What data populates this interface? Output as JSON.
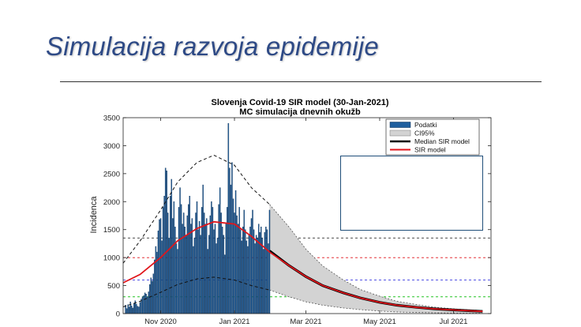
{
  "slide": {
    "title": "Simulacija razvoja epidemije"
  },
  "chart_data": {
    "type": "bar",
    "title": "Slovenja Covid-19 SIR model (30-Jan-2021)",
    "subtitle": "MC simulacija dnevnih okužb",
    "xlabel": "",
    "ylabel": "Incidenca",
    "ylim": [
      0,
      3500
    ],
    "yticks": [
      0,
      500,
      1000,
      1500,
      2000,
      2500,
      3000,
      3500
    ],
    "xlim": [
      "2020-10-01",
      "2021-08-01"
    ],
    "xticks": [
      {
        "date": "2020-11-01",
        "label": "Nov 2020"
      },
      {
        "date": "2021-01-01",
        "label": "Jan 2021"
      },
      {
        "date": "2021-03-01",
        "label": "Mar 2021"
      },
      {
        "date": "2021-05-01",
        "label": "May 2021"
      },
      {
        "date": "2021-07-01",
        "label": "Jul 2021"
      }
    ],
    "legend": {
      "placement": "top-right",
      "entries": [
        "Podatki",
        "CI95%",
        "Median SIR model",
        "SIR model"
      ]
    },
    "colors": {
      "bars": "#1f5f9e",
      "ci": "#d3d3d3",
      "median": "#000000",
      "sir": "#e0151b",
      "hline_black": "#333333",
      "hline_red": "#e0151b",
      "hline_blue": "#3a3ae0",
      "hline_green": "#22c422"
    },
    "horizontal_lines": [
      {
        "y": 1350,
        "color": "black",
        "style": "dashed"
      },
      {
        "y": 1000,
        "color": "red",
        "style": "dashed"
      },
      {
        "y": 600,
        "color": "blue",
        "style": "dashed"
      },
      {
        "y": 300,
        "color": "green",
        "style": "dashed"
      }
    ],
    "podatki_dates_start": "2020-10-03",
    "podatki": [
      150,
      90,
      160,
      120,
      210,
      140,
      100,
      180,
      230,
      170,
      130,
      120,
      200,
      260,
      300,
      320,
      370,
      350,
      300,
      390,
      520,
      640,
      580,
      710,
      960,
      1200,
      1100,
      1480,
      1680,
      1700,
      1300,
      1900,
      2100,
      2600,
      2550,
      1800,
      1350,
      2100,
      2400,
      1700,
      2000,
      1550,
      1250,
      1150,
      1900,
      2250,
      1950,
      1600,
      1800,
      1550,
      1400,
      1750,
      1950,
      2100,
      1600,
      1700,
      1200,
      1350,
      1800,
      2000,
      1500,
      1650,
      1400,
      1900,
      2300,
      1800,
      1600,
      1700,
      1150,
      1400,
      1750,
      2000,
      1900,
      1500,
      1600,
      1250,
      1350,
      1950,
      2250,
      1800,
      1550,
      1400,
      1050,
      1600,
      1900,
      3400,
      2600,
      2300,
      2700,
      2050,
      1800,
      2200,
      1750,
      1600,
      1900,
      1500,
      1300,
      1550,
      1850,
      1500,
      1300,
      1200,
      1400,
      1550,
      1700,
      1850,
      1500,
      1250,
      1400,
      1350,
      1600,
      1450,
      1550,
      1350,
      1150,
      1450,
      1550,
      1500,
      1250,
      1850
    ],
    "sir_model": [
      {
        "date": "2020-10-01",
        "y": 550
      },
      {
        "date": "2020-10-15",
        "y": 700
      },
      {
        "date": "2020-11-01",
        "y": 1000
      },
      {
        "date": "2020-11-15",
        "y": 1300
      },
      {
        "date": "2020-12-01",
        "y": 1520
      },
      {
        "date": "2020-12-15",
        "y": 1640
      },
      {
        "date": "2021-01-01",
        "y": 1600
      },
      {
        "date": "2021-01-15",
        "y": 1380
      },
      {
        "date": "2021-01-30",
        "y": 1100
      },
      {
        "date": "2021-02-15",
        "y": 860
      },
      {
        "date": "2021-03-01",
        "y": 660
      },
      {
        "date": "2021-03-15",
        "y": 500
      },
      {
        "date": "2021-04-01",
        "y": 370
      },
      {
        "date": "2021-04-15",
        "y": 280
      },
      {
        "date": "2021-05-01",
        "y": 200
      },
      {
        "date": "2021-05-15",
        "y": 150
      },
      {
        "date": "2021-06-01",
        "y": 110
      },
      {
        "date": "2021-06-15",
        "y": 85
      },
      {
        "date": "2021-07-01",
        "y": 65
      },
      {
        "date": "2021-07-15",
        "y": 50
      },
      {
        "date": "2021-07-25",
        "y": 40
      }
    ],
    "median_sir": [
      {
        "date": "2021-01-30",
        "y": 1120
      },
      {
        "date": "2021-02-15",
        "y": 860
      },
      {
        "date": "2021-03-01",
        "y": 660
      },
      {
        "date": "2021-03-15",
        "y": 500
      },
      {
        "date": "2021-04-01",
        "y": 370
      },
      {
        "date": "2021-04-15",
        "y": 280
      },
      {
        "date": "2021-05-01",
        "y": 200
      },
      {
        "date": "2021-05-15",
        "y": 150
      },
      {
        "date": "2021-06-01",
        "y": 110
      },
      {
        "date": "2021-06-15",
        "y": 85
      },
      {
        "date": "2021-07-01",
        "y": 65
      },
      {
        "date": "2021-07-15",
        "y": 50
      },
      {
        "date": "2021-07-25",
        "y": 40
      }
    ],
    "ci_upper_dashed": [
      {
        "date": "2020-10-01",
        "y": 900
      },
      {
        "date": "2020-10-15",
        "y": 1300
      },
      {
        "date": "2020-11-01",
        "y": 1850
      },
      {
        "date": "2020-11-15",
        "y": 2350
      },
      {
        "date": "2020-12-01",
        "y": 2700
      },
      {
        "date": "2020-12-15",
        "y": 2830
      },
      {
        "date": "2021-01-01",
        "y": 2650
      },
      {
        "date": "2021-01-15",
        "y": 2250
      },
      {
        "date": "2021-01-30",
        "y": 1950
      }
    ],
    "ci_lower_dashed": [
      {
        "date": "2020-10-01",
        "y": 120
      },
      {
        "date": "2020-10-15",
        "y": 220
      },
      {
        "date": "2020-11-01",
        "y": 380
      },
      {
        "date": "2020-11-15",
        "y": 520
      },
      {
        "date": "2020-12-01",
        "y": 620
      },
      {
        "date": "2020-12-15",
        "y": 650
      },
      {
        "date": "2021-01-01",
        "y": 600
      },
      {
        "date": "2021-01-15",
        "y": 500
      },
      {
        "date": "2021-01-30",
        "y": 420
      }
    ],
    "ci95_band": [
      {
        "date": "2021-01-30",
        "lo": 420,
        "hi": 1950
      },
      {
        "date": "2021-02-15",
        "lo": 300,
        "hi": 1550
      },
      {
        "date": "2021-03-01",
        "lo": 210,
        "hi": 1150
      },
      {
        "date": "2021-03-15",
        "lo": 150,
        "hi": 850
      },
      {
        "date": "2021-04-01",
        "lo": 100,
        "hi": 600
      },
      {
        "date": "2021-04-15",
        "lo": 70,
        "hi": 430
      },
      {
        "date": "2021-05-01",
        "lo": 45,
        "hi": 310
      },
      {
        "date": "2021-05-15",
        "lo": 30,
        "hi": 220
      },
      {
        "date": "2021-06-01",
        "lo": 20,
        "hi": 160
      },
      {
        "date": "2021-06-15",
        "lo": 14,
        "hi": 115
      },
      {
        "date": "2021-07-01",
        "lo": 10,
        "hi": 85
      },
      {
        "date": "2021-07-15",
        "lo": 7,
        "hi": 65
      },
      {
        "date": "2021-07-25",
        "lo": 5,
        "hi": 55
      }
    ]
  }
}
